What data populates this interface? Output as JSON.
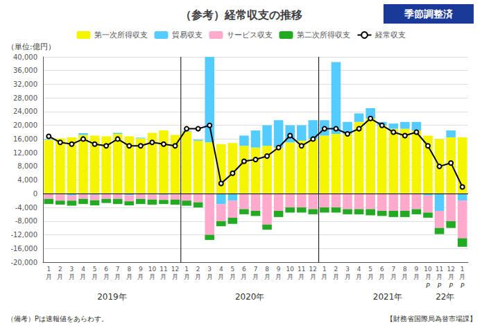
{
  "chart_data": {
    "type": "bar",
    "title": "（参考）経常収支の推移",
    "subtitle": {
      "text": "季節調整済",
      "color": "#1a3a9a"
    },
    "y_label": "（単位:億円）",
    "footnotes": [
      "（備考）Pは速報値をあらわす。",
      "【財務省国際局為替市場課】"
    ],
    "categories": [
      "1\n月",
      "2\n月",
      "3\n月",
      "4\n月",
      "5\n月",
      "6\n月",
      "7\n月",
      "8\n月",
      "9\n月",
      "10\n月",
      "11\n月",
      "12\n月",
      "1\n月",
      "2\n月",
      "3\n月",
      "4\n月",
      "5\n月",
      "6\n月",
      "7\n月",
      "8\n月",
      "9\n月",
      "10\n月",
      "11\n月",
      "12\n月",
      "1\n月",
      "2\n月",
      "3\n月",
      "4\n月",
      "5\n月",
      "6\n月",
      "7\n月",
      "8\n月",
      "9\n月",
      "10\n月",
      "11\n月",
      "12\n月",
      "1\n月"
    ],
    "stacked": true,
    "series": [
      {
        "name": "第一次所得収支",
        "color": "#f5f500",
        "values": [
          15800,
          16200,
          16500,
          17200,
          17000,
          16800,
          17500,
          16800,
          16200,
          17800,
          18500,
          17200,
          18200,
          15500,
          15000,
          14500,
          14800,
          14000,
          13500,
          14000,
          13500,
          15000,
          15500,
          16000,
          17000,
          17500,
          17500,
          21000,
          22000,
          20000,
          19000,
          19000,
          18500,
          17000,
          16000,
          16500,
          16500
        ]
      },
      {
        "name": "貿易収支",
        "color": "#55ccff",
        "values": [
          200,
          -200,
          -500,
          500,
          -300,
          0,
          300,
          -400,
          200,
          -200,
          -300,
          -200,
          200,
          300,
          25000,
          -3000,
          -2000,
          3000,
          5000,
          6000,
          8000,
          5000,
          4500,
          5500,
          4500,
          21000,
          3500,
          2500,
          3000,
          1000,
          1500,
          2000,
          2500,
          -500,
          -5000,
          2000,
          -2000
        ]
      },
      {
        "name": "サービス収支",
        "color": "#ffaacc",
        "values": [
          -1500,
          -1800,
          -1500,
          -1500,
          -1600,
          -1500,
          -1500,
          -1800,
          -1500,
          -1500,
          -1500,
          -1500,
          -2000,
          -2500,
          -12000,
          -5000,
          -5000,
          -4500,
          -5000,
          -9000,
          -5000,
          -4000,
          -4000,
          -4500,
          -4000,
          -4000,
          -4500,
          -4500,
          -4500,
          -5000,
          -5000,
          -5000,
          -4500,
          -5000,
          -5000,
          -8000,
          -11000
        ]
      },
      {
        "name": "第二次所得収支",
        "color": "#22aa22",
        "values": [
          -1500,
          -1200,
          -1500,
          -1500,
          -1500,
          -1200,
          -1500,
          -1200,
          -1500,
          -1500,
          -1200,
          -1500,
          -1500,
          -1500,
          -1500,
          -1500,
          -1800,
          -1500,
          -1500,
          -1500,
          -1800,
          -1500,
          -1500,
          -1500,
          -1500,
          -1500,
          -1500,
          -1500,
          -1800,
          -1500,
          -1800,
          -1800,
          -1500,
          -1500,
          -1800,
          -2000,
          -2500
        ]
      },
      {
        "name": "経常収支",
        "type": "line",
        "color": "#000000",
        "marker": "circle",
        "values": [
          16800,
          15000,
          14500,
          16000,
          14500,
          14000,
          16000,
          14000,
          14000,
          15000,
          14500,
          14000,
          19000,
          19000,
          20000,
          3000,
          6000,
          9500,
          10000,
          11000,
          13500,
          17000,
          14000,
          16000,
          19000,
          19000,
          17500,
          19000,
          22000,
          20000,
          18000,
          17000,
          18000,
          14000,
          8000,
          9000,
          2000
        ]
      }
    ],
    "ylim": [
      -20000,
      40000
    ],
    "yticks": [
      {
        "value": -20000,
        "label": "-20,000"
      },
      {
        "value": -16000,
        "label": "-16,000"
      },
      {
        "value": -12000,
        "label": "-12,000"
      },
      {
        "value": -8000,
        "label": "-8,000"
      },
      {
        "value": -4000,
        "label": "-4,000"
      },
      0,
      {
        "value": 4000,
        "label": "4,000"
      },
      {
        "value": 8000,
        "label": "8,000"
      },
      {
        "value": 12000,
        "label": "12,000"
      },
      {
        "value": 16000,
        "label": "16,000"
      },
      {
        "value": 20000,
        "label": "20,000"
      },
      {
        "value": 24000,
        "label": "24,000"
      },
      {
        "value": 28000,
        "label": "28,000"
      },
      {
        "value": 32000,
        "label": "32,000"
      },
      {
        "value": 36000,
        "label": "36,000"
      },
      {
        "value": 40000,
        "label": "40,000"
      }
    ],
    "grid": true,
    "legend": "top",
    "vlines": [
      11.5,
      23.5
    ],
    "year_labels": [
      {
        "text": "2019年",
        "x": 5.5
      },
      {
        "text": "2020年",
        "x": 17.5
      },
      {
        "text": "2021年",
        "x": 29.5
      },
      {
        "text": "22年",
        "x": 34.5
      }
    ],
    "annotations": [
      {
        "text": "P",
        "x": 33
      },
      {
        "text": "P",
        "x": 34
      },
      {
        "text": "P",
        "x": 35
      },
      {
        "text": "P",
        "x": 36
      }
    ]
  }
}
